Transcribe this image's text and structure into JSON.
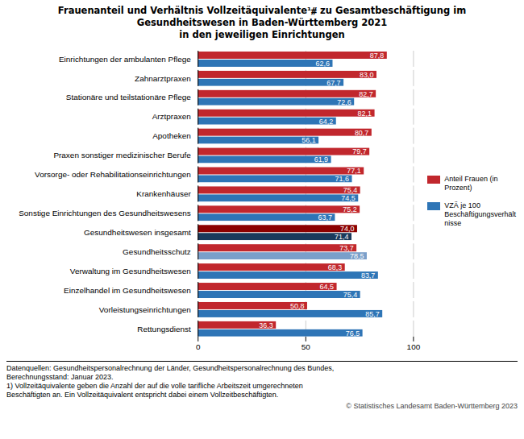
{
  "chart_data": {
    "type": "bar",
    "orientation": "horizontal",
    "title": "Frauenanteil und Verhältnis Vollzeitäquivalente¹⧣ zu Gesamtbeschäftigung im\nGesundheitswesen in Baden-Württemberg 2021",
    "subtitle": "in den jeweiligen Einrichtungen",
    "categories": [
      "Einrichtungen der ambulanten Pflege",
      "Zahnarztpraxen",
      "Stationäre und teilstationäre Pflege",
      "Arztpraxen",
      "Apotheken",
      "Praxen sonstiger medizinischer Berufe",
      "Vorsorge- oder Rehabilitationseinrichtungen",
      "Krankenhäuser",
      "Sonstige Einrichtungen des Gesundheitswesens",
      "Gesundheitswesen insgesamt",
      "Gesundheitsschutz",
      "Verwaltung im Gesundheitswesen",
      "Einzelhandel im Gesundheitswesen",
      "Vorleistungseinrichtungen",
      "Rettungsdienst"
    ],
    "series": [
      {
        "name": "Anteil Frauen (in\nProzent)",
        "color": "#c1272d",
        "colors": [
          "#c1272d",
          "#c1272d",
          "#c1272d",
          "#c1272d",
          "#c1272d",
          "#c1272d",
          "#c1272d",
          "#c1272d",
          "#c1272d",
          "#8b0000",
          "#c1272d",
          "#c1272d",
          "#c1272d",
          "#c1272d",
          "#c1272d"
        ],
        "values": [
          87.8,
          83.0,
          82.7,
          82.1,
          80.7,
          79.7,
          77.1,
          75.4,
          75.2,
          74.0,
          73.7,
          68.3,
          64.5,
          50.8,
          36.3
        ],
        "value_labels": [
          "87,8",
          "83,0",
          "82,7",
          "82,1",
          "80,7",
          "79,7",
          "77,1",
          "75,4",
          "75,2",
          "74,0",
          "73,7",
          "68,3",
          "64,5",
          "50,8",
          "36,3"
        ]
      },
      {
        "name": "VZÄ je 100\nBeschäftigungsverhält\nnisse",
        "color": "#2e75b6",
        "colors": [
          "#2e75b6",
          "#2e75b6",
          "#2e75b6",
          "#2e75b6",
          "#2e75b6",
          "#2e75b6",
          "#2e75b6",
          "#2e75b6",
          "#2e75b6",
          "#1a3a5c",
          "#7a9fca",
          "#2e75b6",
          "#2e75b6",
          "#2e75b6",
          "#2e75b6"
        ],
        "values": [
          62.6,
          67.7,
          72.6,
          64.2,
          56.1,
          61.9,
          71.6,
          74.5,
          63.7,
          71.4,
          78.5,
          83.7,
          75.4,
          85.7,
          76.5
        ],
        "value_labels": [
          "62,6",
          "67,7",
          "72,6",
          "64,2",
          "56,1",
          "61,9",
          "71,6",
          "74,5",
          "63,7",
          "71,4",
          "78,5",
          "83,7",
          "75,4",
          "85,7",
          "76,5"
        ]
      }
    ],
    "xlim": [
      0,
      100
    ],
    "xticks": [
      0,
      50,
      100
    ],
    "grid": true,
    "data_labels": true,
    "legend": "right",
    "annotations": [
      "Datenquellen: Gesundheitspersonalrechnung der Länder, Gesundheitspersonalrechnung des Bundes,",
      "Berechnungsstand: Januar 2023.",
      "1) Vollzeitäquivalente geben die Anzahl der auf die volle tarifliche Arbeitszeit umgerechneten",
      "Beschäftigten an. Ein Vollzeitäquivalent entspricht dabei einem Vollzeitbeschäftigten.",
      "© Statistisches Landesamt Baden-Württemberg 2023"
    ]
  }
}
